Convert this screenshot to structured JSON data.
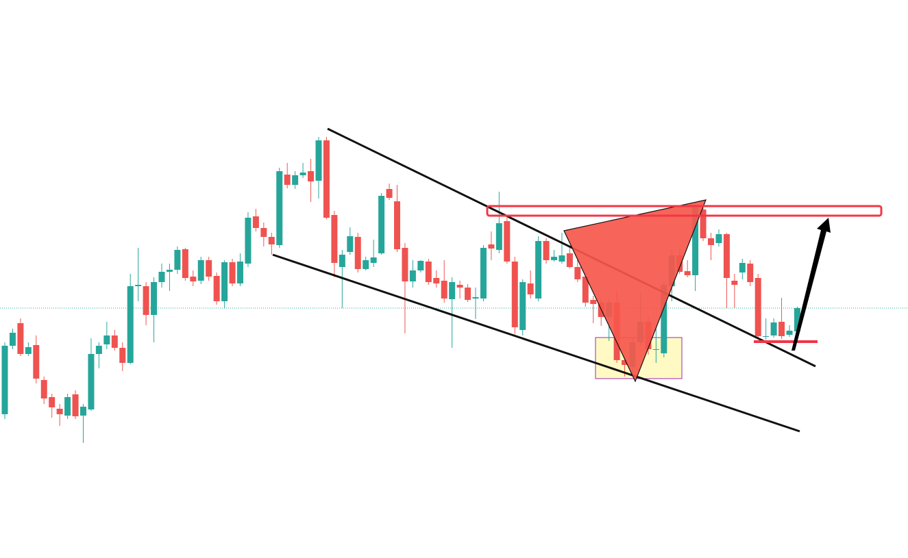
{
  "chart_data": {
    "type": "candlestick",
    "up_color": "#26a69a",
    "down_color": "#ef5350",
    "ylim": [
      0,
      815
    ],
    "open": [
      210,
      310,
      343,
      298,
      311,
      260,
      235,
      218,
      208,
      239,
      208,
      217,
      298,
      312,
      325,
      307,
      285,
      397,
      397,
      355,
      403,
      418,
      421,
      451,
      411,
      405,
      435,
      412,
      375,
      432,
      401,
      430,
      499,
      482,
      469,
      457,
      560,
      545,
      559,
      565,
      551,
      610,
      501,
      425,
      447,
      469,
      422,
      431,
      445,
      539,
      521,
      453,
      404,
      420,
      433,
      409,
      405,
      378,
      399,
      395,
      379,
      379,
      458,
      450,
      492,
      433,
      333,
      401,
      379,
      463,
      435,
      433,
      445,
      425,
      411,
      377,
      373,
      352,
      373,
      289,
      279,
      315,
      345,
      304,
      299,
      397,
      442,
      419,
      413,
      509,
      467,
      460,
      473,
      405,
      417,
      430,
      409,
      323,
      325,
      345,
      326,
      331
    ],
    "high": [
      315,
      335,
      350,
      315,
      325,
      265,
      240,
      225,
      240,
      245,
      225,
      321,
      315,
      345,
      333,
      315,
      415,
      453,
      403,
      410,
      430,
      430,
      455,
      453,
      420,
      440,
      440,
      417,
      435,
      437,
      445,
      505,
      510,
      490,
      475,
      570,
      577,
      565,
      577,
      583,
      615,
      615,
      507,
      450,
      483,
      475,
      440,
      465,
      533,
      547,
      545,
      460,
      435,
      435,
      437,
      420,
      435,
      410,
      405,
      400,
      395,
      457,
      477,
      535,
      497,
      440,
      407,
      420,
      470,
      467,
      450,
      475,
      455,
      437,
      419,
      383,
      380,
      377,
      390,
      295,
      320,
      387,
      353,
      335,
      403,
      450,
      450,
      435,
      517,
      515,
      475,
      480,
      475,
      415,
      437,
      435,
      415,
      350,
      350,
      380,
      340,
      367
    ],
    "low": [
      203,
      305,
      295,
      295,
      255,
      225,
      205,
      193,
      203,
      203,
      168,
      215,
      277,
      305,
      303,
      273,
      283,
      375,
      340,
      315,
      395,
      390,
      415,
      405,
      397,
      400,
      405,
      370,
      365,
      397,
      397,
      425,
      477,
      455,
      443,
      453,
      540,
      539,
      555,
      520,
      525,
      495,
      410,
      365,
      443,
      417,
      420,
      425,
      443,
      523,
      447,
      328,
      395,
      417,
      399,
      395,
      373,
      307,
      379,
      374,
      349,
      375,
      435,
      445,
      430,
      327,
      325,
      379,
      375,
      430,
      433,
      430,
      423,
      403,
      367,
      343,
      339,
      317,
      285,
      265,
      270,
      310,
      297,
      285,
      293,
      375,
      415,
      410,
      390,
      463,
      435,
      455,
      365,
      365,
      407,
      397,
      320,
      319,
      322,
      320,
      323,
      329
    ],
    "close": [
      310,
      329,
      298,
      308,
      262,
      233,
      220,
      210,
      235,
      207,
      221,
      298,
      310,
      325,
      307,
      285,
      397,
      399,
      355,
      403,
      418,
      421,
      450,
      409,
      404,
      435,
      411,
      375,
      432,
      401,
      433,
      497,
      482,
      469,
      458,
      565,
      545,
      559,
      563,
      550,
      610,
      497,
      431,
      443,
      470,
      422,
      435,
      439,
      529,
      526,
      451,
      404,
      420,
      434,
      403,
      401,
      379,
      403,
      395,
      377,
      381,
      453,
      452,
      489,
      433,
      337,
      403,
      385,
      463,
      435,
      440,
      442,
      425,
      407,
      373,
      371,
      352,
      373,
      289,
      282,
      315,
      345,
      305,
      305,
      399,
      442,
      418,
      413,
      512,
      467,
      457,
      473,
      409,
      399,
      431,
      403,
      324,
      324,
      344,
      324,
      332,
      365
    ]
  }
}
